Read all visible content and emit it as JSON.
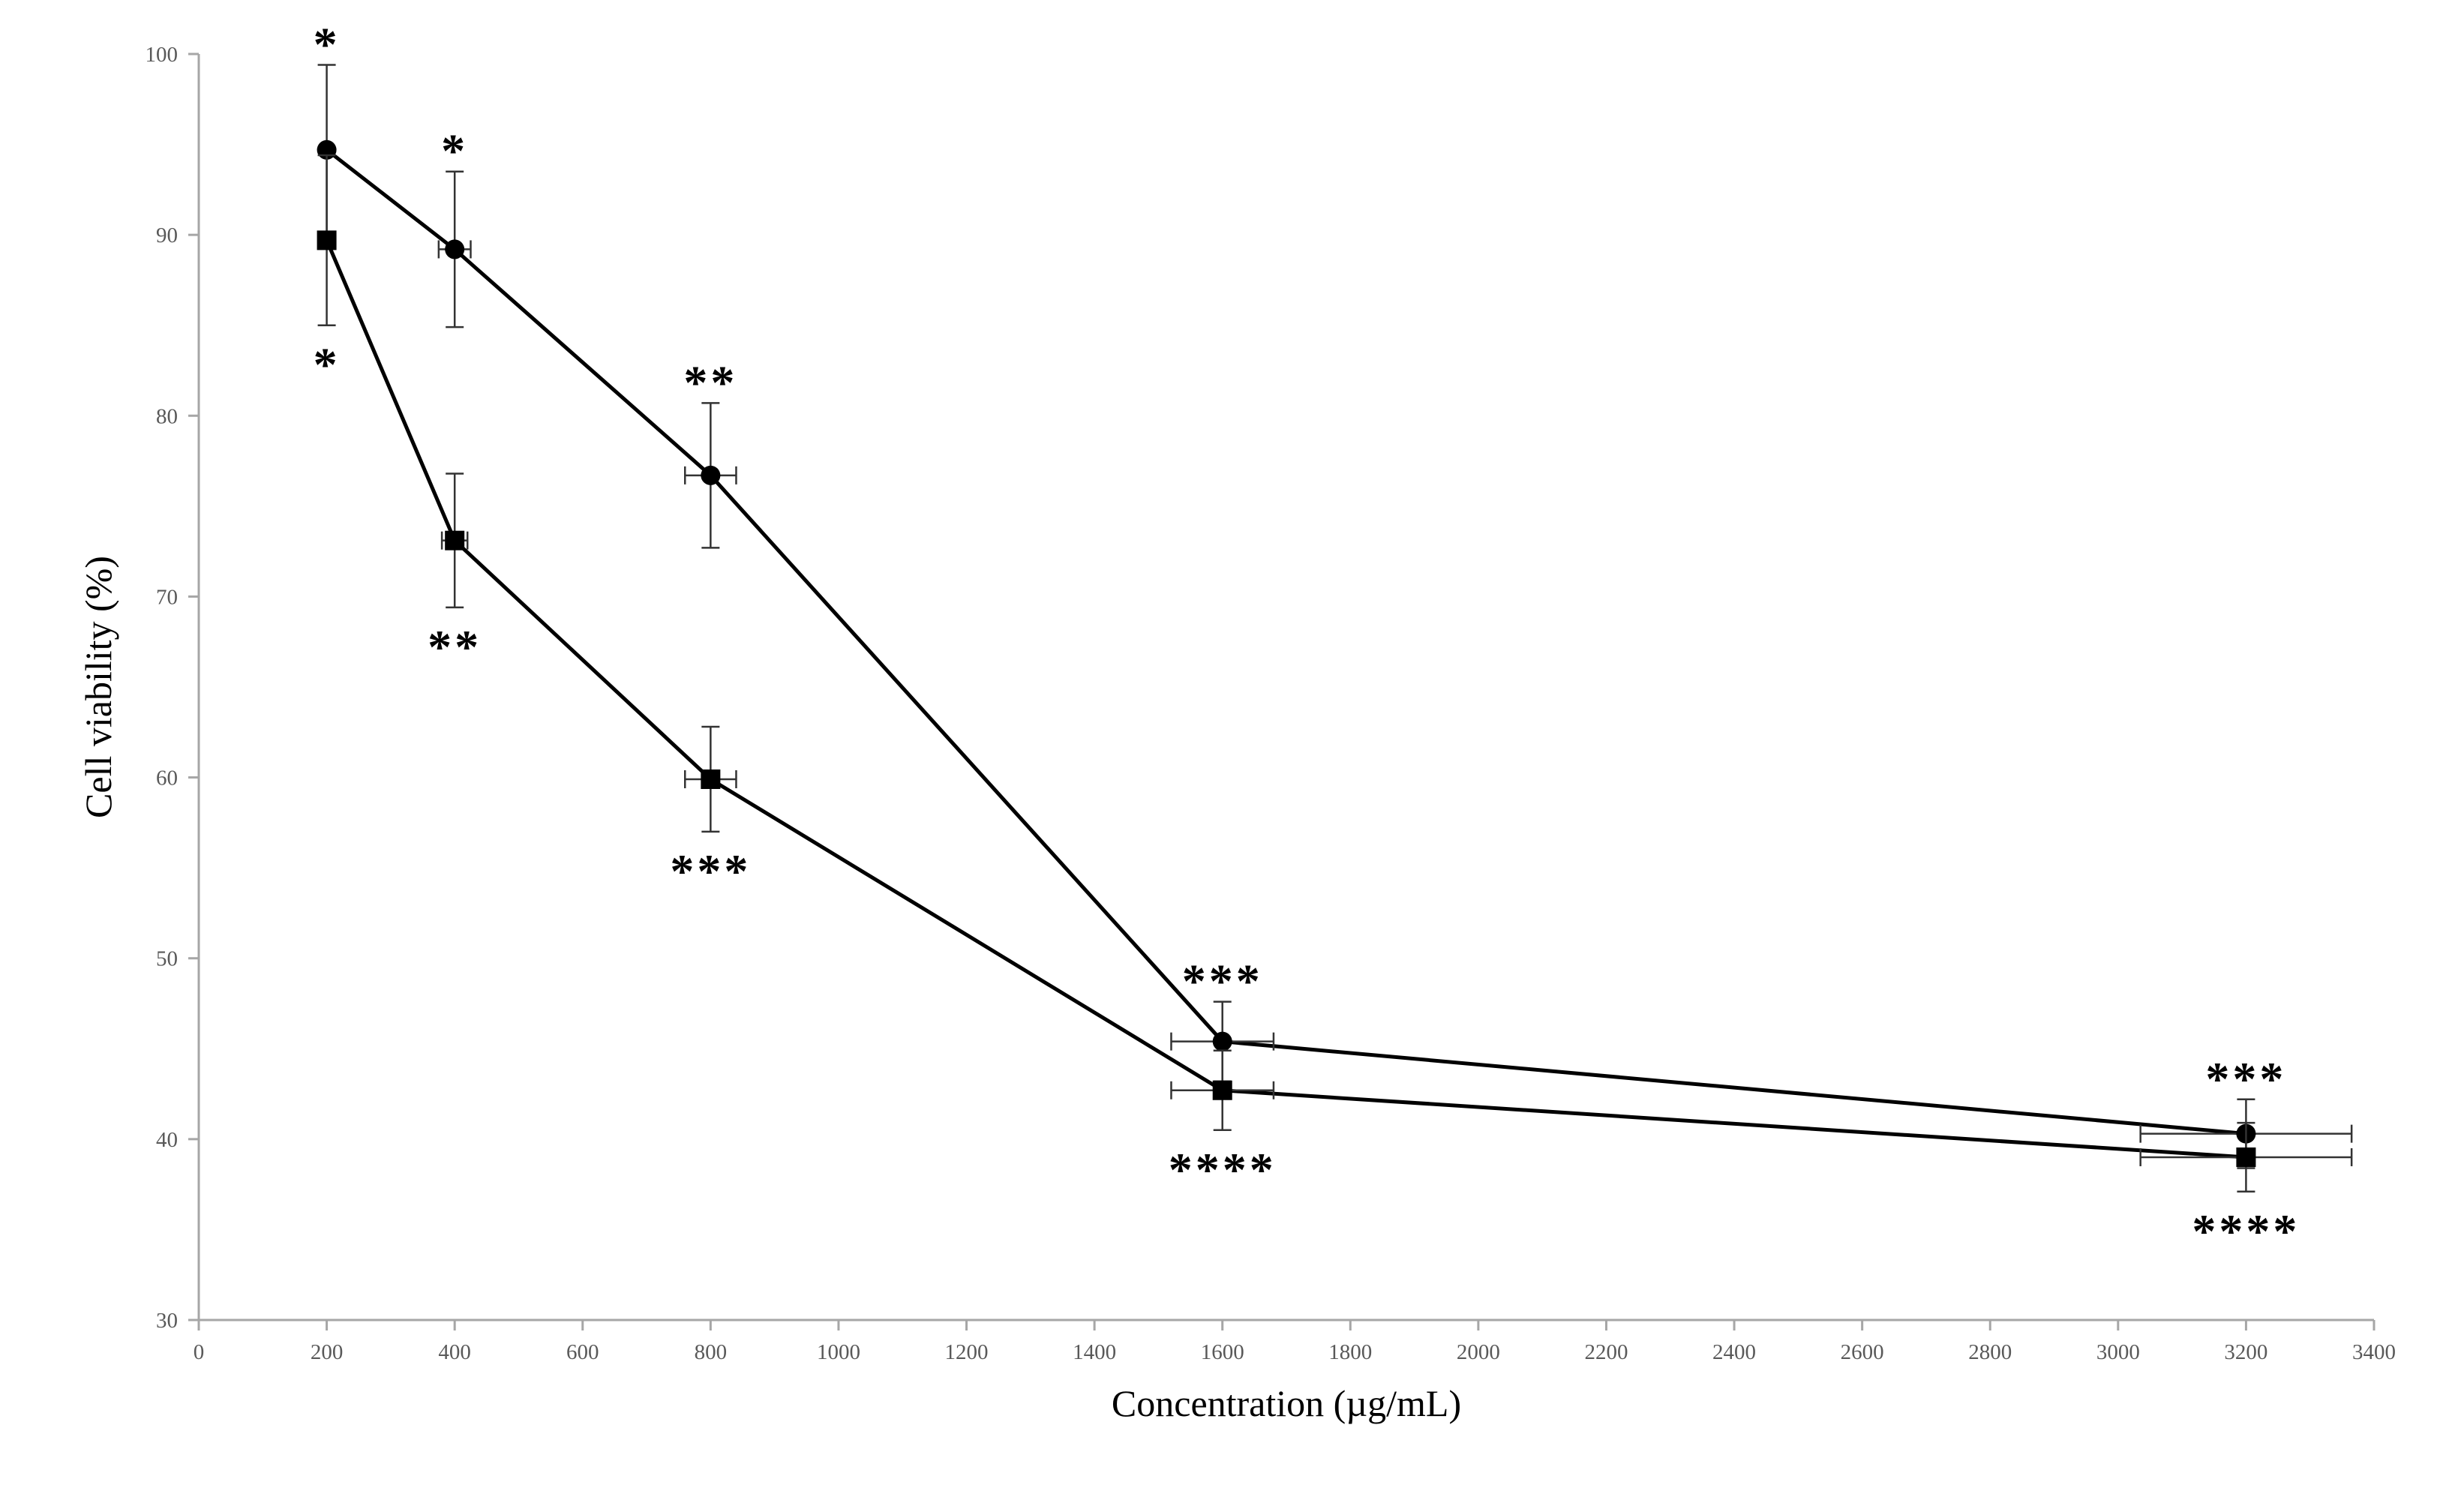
{
  "chart_data": {
    "type": "line",
    "title": "",
    "xlabel": "Concentration (µg/mL)",
    "ylabel": "Cell viability  (%)",
    "xlim": [
      0,
      3400
    ],
    "ylim": [
      30,
      100
    ],
    "xticks": [
      0,
      200,
      400,
      600,
      800,
      1000,
      1200,
      1400,
      1600,
      1800,
      2000,
      2200,
      2400,
      2600,
      2800,
      3000,
      3200,
      3400
    ],
    "yticks": [
      30,
      40,
      50,
      60,
      70,
      80,
      90,
      100
    ],
    "grid": false,
    "legend": "none",
    "x": [
      200,
      400,
      800,
      1600,
      3200
    ],
    "series": [
      {
        "name": "circle series",
        "marker": "circle",
        "values": [
          94.7,
          89.2,
          76.7,
          45.4,
          40.3
        ],
        "y_err": [
          4.7,
          4.3,
          4.0,
          2.2,
          1.9
        ],
        "x_err": [
          0,
          25,
          40,
          80,
          165
        ],
        "annotations": [
          "*",
          "*",
          "**",
          "***",
          "***"
        ],
        "annotation_side": [
          "above",
          "above",
          "above",
          "above",
          "above"
        ]
      },
      {
        "name": "square series",
        "marker": "square",
        "values": [
          89.7,
          73.1,
          59.9,
          42.7,
          39.0
        ],
        "y_err": [
          4.7,
          3.7,
          2.9,
          2.2,
          1.9
        ],
        "x_err": [
          0,
          20,
          40,
          80,
          165
        ],
        "annotations": [
          "*",
          "**",
          "***",
          "****",
          "****"
        ],
        "annotation_side": [
          "below",
          "below",
          "below",
          "below",
          "below"
        ]
      }
    ]
  }
}
